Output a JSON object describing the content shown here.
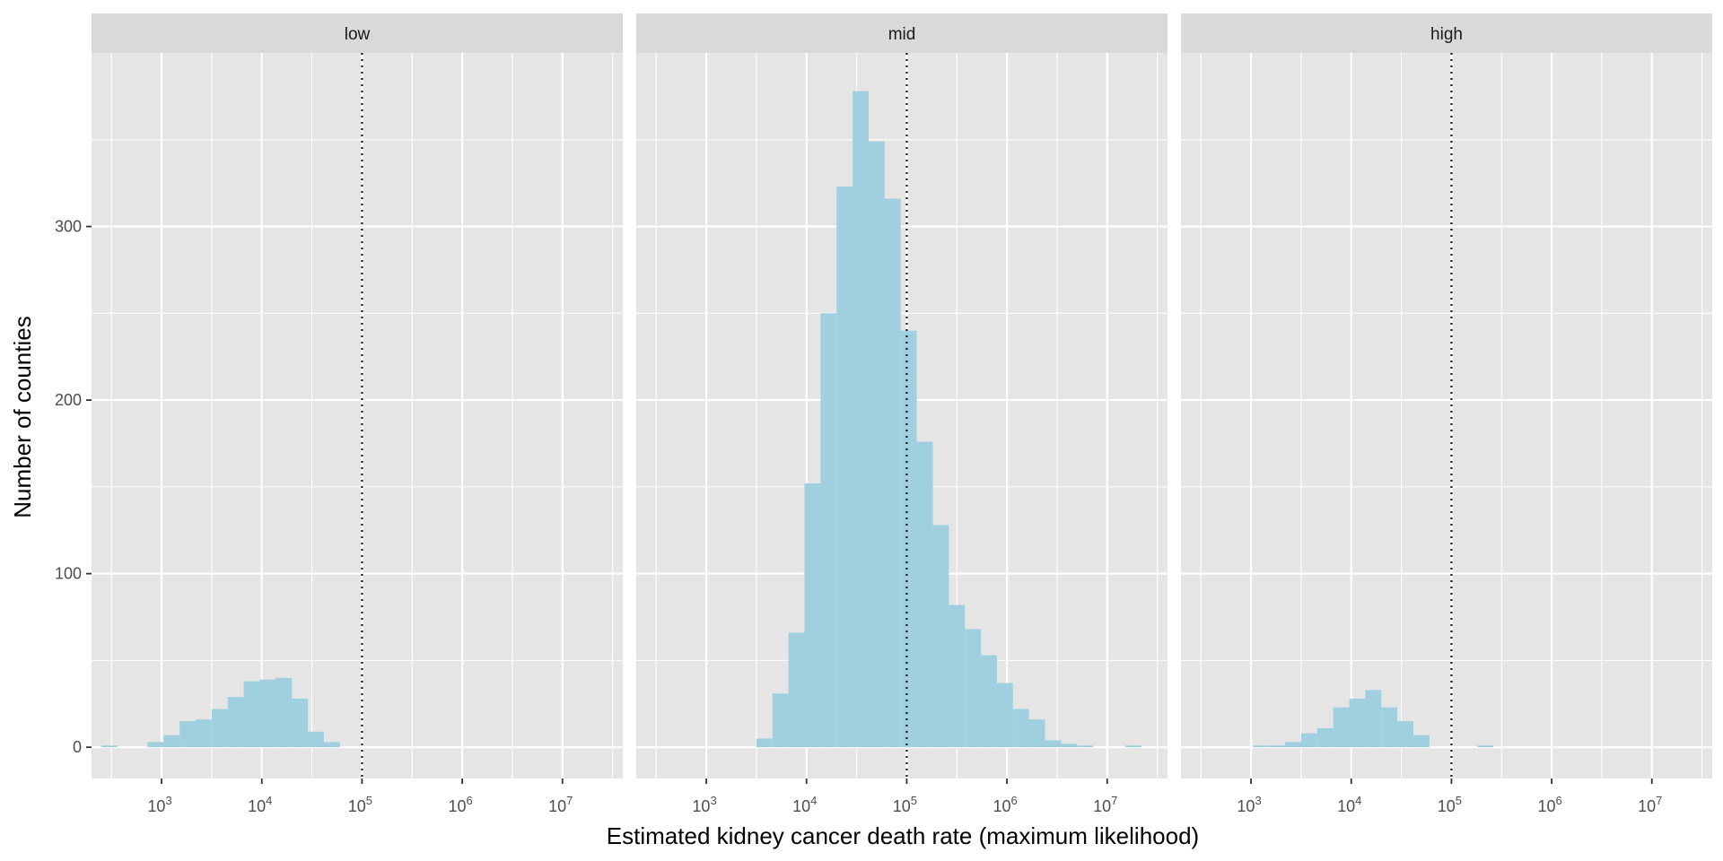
{
  "chart_data": {
    "type": "histogram",
    "xlabel": "Estimated kidney cancer death rate (maximum likelihood)",
    "ylabel": "Number of counties",
    "x_scale": "log10",
    "xlim": [
      200,
      40000000
    ],
    "ylim": [
      -18,
      400
    ],
    "x_tick_labels": [
      {
        "value": 1000,
        "base": "10",
        "exp": "3"
      },
      {
        "value": 10000,
        "base": "10",
        "exp": "4"
      },
      {
        "value": 100000,
        "base": "10",
        "exp": "5"
      },
      {
        "value": 1000000,
        "base": "10",
        "exp": "6"
      },
      {
        "value": 10000000,
        "base": "10",
        "exp": "7"
      }
    ],
    "y_ticks": [
      0,
      100,
      200,
      300
    ],
    "y_tick_labels": [
      "0",
      "100",
      "200",
      "300"
    ],
    "reference_line": {
      "x": 100000,
      "style": "dotted"
    },
    "bin_width_log10": 0.16,
    "facets": [
      {
        "label": "low",
        "bins": [
          {
            "x": 302,
            "count": 1
          },
          {
            "x": 871,
            "count": 3
          },
          {
            "x": 1259,
            "count": 7
          },
          {
            "x": 1820,
            "count": 15
          },
          {
            "x": 2630,
            "count": 16
          },
          {
            "x": 3802,
            "count": 22
          },
          {
            "x": 5495,
            "count": 29
          },
          {
            "x": 7943,
            "count": 38
          },
          {
            "x": 11482,
            "count": 39
          },
          {
            "x": 16596,
            "count": 40
          },
          {
            "x": 23988,
            "count": 28
          },
          {
            "x": 34674,
            "count": 9
          },
          {
            "x": 50119,
            "count": 3
          }
        ]
      },
      {
        "label": "mid",
        "bins": [
          {
            "x": 3802,
            "count": 5
          },
          {
            "x": 5495,
            "count": 31
          },
          {
            "x": 7943,
            "count": 66
          },
          {
            "x": 11482,
            "count": 152
          },
          {
            "x": 16596,
            "count": 250
          },
          {
            "x": 23988,
            "count": 323
          },
          {
            "x": 34674,
            "count": 378
          },
          {
            "x": 50119,
            "count": 349
          },
          {
            "x": 72444,
            "count": 316
          },
          {
            "x": 104713,
            "count": 240
          },
          {
            "x": 151356,
            "count": 176
          },
          {
            "x": 218776,
            "count": 128
          },
          {
            "x": 316228,
            "count": 82
          },
          {
            "x": 457088,
            "count": 68
          },
          {
            "x": 660693,
            "count": 53
          },
          {
            "x": 954993,
            "count": 37
          },
          {
            "x": 1380384,
            "count": 22
          },
          {
            "x": 1995262,
            "count": 16
          },
          {
            "x": 2884032,
            "count": 4
          },
          {
            "x": 4168694,
            "count": 2
          },
          {
            "x": 6025596,
            "count": 1
          },
          {
            "x": 18197009,
            "count": 1
          }
        ]
      },
      {
        "label": "high",
        "bins": [
          {
            "x": 1259,
            "count": 1
          },
          {
            "x": 1820,
            "count": 1
          },
          {
            "x": 2630,
            "count": 3
          },
          {
            "x": 3802,
            "count": 8
          },
          {
            "x": 5495,
            "count": 11
          },
          {
            "x": 7943,
            "count": 23
          },
          {
            "x": 11482,
            "count": 28
          },
          {
            "x": 16596,
            "count": 33
          },
          {
            "x": 23988,
            "count": 23
          },
          {
            "x": 34674,
            "count": 15
          },
          {
            "x": 50119,
            "count": 7
          },
          {
            "x": 218776,
            "count": 1
          }
        ]
      }
    ],
    "colors": {
      "panel_background": "#e5e5e5",
      "grid": "#ffffff",
      "strip_background": "#d9d9d9",
      "bar_fill": "#a0d0e0",
      "reference_line": "#1a1a1a"
    }
  }
}
